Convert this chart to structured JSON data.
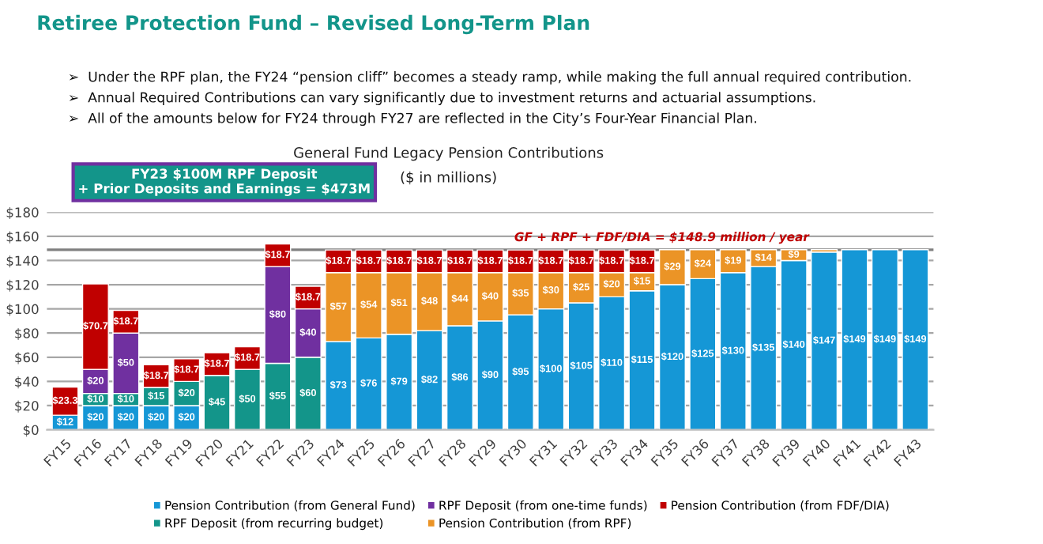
{
  "chart_data": {
    "type": "bar",
    "stacked": true,
    "title": "General Fund Legacy Pension Contributions",
    "subtitle": "($ in millions)",
    "annotations": [
      "Retiree Protection Fund – Revised Long-Term Plan",
      "➢  Under the RPF plan, the FY24 “pension cliff” becomes a steady ramp, while making the full annual required contribution.",
      "➢  Annual Required Contributions can vary significantly due to investment returns and actuarial assumptions.",
      "➢  All of the amounts below for FY24 through FY27 are reflected in the City’s Four-Year Financial Plan.",
      "FY23 $100M RPF Deposit\n+ Prior Deposits and Earnings = $473M"
    ],
    "categories": [
      "FY15",
      "FY16",
      "FY17",
      "FY18",
      "FY19",
      "FY20",
      "FY21",
      "FY22",
      "FY23",
      "FY24",
      "FY25",
      "FY26",
      "FY27",
      "FY28",
      "FY29",
      "FY30",
      "FY31",
      "FY32",
      "FY33",
      "FY34",
      "FY35",
      "FY36",
      "FY37",
      "FY38",
      "FY39",
      "FY40",
      "FY41",
      "FY42",
      "FY43"
    ],
    "series": [
      {
        "name": "Pension Contribution (from General Fund)",
        "color": "#1597d6",
        "values": [
          12,
          20,
          20,
          20,
          20,
          null,
          null,
          null,
          null,
          73,
          76,
          79,
          82,
          86,
          90,
          95,
          100,
          105,
          110,
          115,
          120,
          125,
          130,
          135,
          140,
          147,
          149,
          149,
          149
        ],
        "value_labels": [
          "$12",
          "$20",
          "$20",
          "$20",
          "$20",
          null,
          null,
          null,
          null,
          "$73",
          "$76",
          "$79",
          "$82",
          "$86",
          "$90",
          "$95",
          "$100",
          "$105",
          "$110",
          "$115",
          "$120",
          "$125",
          "$130",
          "$135",
          "$140",
          "$147",
          "$149",
          "$149",
          "$149"
        ]
      },
      {
        "name": "RPF Deposit (from recurring budget)",
        "color": "#13958a",
        "values": [
          null,
          10,
          10,
          15,
          20,
          45,
          50,
          55,
          60,
          null,
          null,
          null,
          null,
          null,
          null,
          null,
          null,
          null,
          null,
          null,
          null,
          null,
          null,
          null,
          null,
          null,
          null,
          null,
          null
        ],
        "value_labels": [
          null,
          "$10",
          "$10",
          "$15",
          "$20",
          "$45",
          "$50",
          "$55",
          "$60",
          null,
          null,
          null,
          null,
          null,
          null,
          null,
          null,
          null,
          null,
          null,
          null,
          null,
          null,
          null,
          null,
          null,
          null,
          null,
          null
        ]
      },
      {
        "name": "RPF Deposit (from one-time funds)",
        "color": "#7030a0",
        "values": [
          null,
          20,
          50,
          null,
          null,
          null,
          null,
          80,
          40,
          null,
          null,
          null,
          null,
          null,
          null,
          null,
          null,
          null,
          null,
          null,
          null,
          null,
          null,
          null,
          null,
          null,
          null,
          null,
          null
        ],
        "value_labels": [
          null,
          "$20",
          "$50",
          null,
          null,
          null,
          null,
          "$80",
          "$40",
          null,
          null,
          null,
          null,
          null,
          null,
          null,
          null,
          null,
          null,
          null,
          null,
          null,
          null,
          null,
          null,
          null,
          null,
          null,
          null
        ]
      },
      {
        "name": "Pension Contribution (from RPF)",
        "color": "#eb9426",
        "values": [
          null,
          null,
          null,
          null,
          null,
          null,
          null,
          null,
          null,
          57,
          54,
          51,
          48,
          44,
          40,
          35,
          30,
          25,
          20,
          15,
          29,
          24,
          19,
          14,
          9,
          2,
          null,
          null,
          null
        ],
        "value_labels": [
          null,
          null,
          null,
          null,
          null,
          null,
          null,
          null,
          null,
          "$57",
          "$54",
          "$51",
          "$48",
          "$44",
          "$40",
          "$35",
          "$30",
          "$25",
          "$20",
          "$15",
          "$29",
          "$24",
          "$19",
          "$14",
          "$9",
          null,
          null,
          null,
          null
        ]
      },
      {
        "name": "Pension Contribution (from FDF/DIA)",
        "color": "#c00000",
        "values": [
          23.3,
          70.7,
          18.7,
          18.7,
          18.7,
          18.7,
          18.7,
          18.7,
          18.7,
          18.7,
          18.7,
          18.7,
          18.7,
          18.7,
          18.7,
          18.7,
          18.7,
          18.7,
          18.7,
          18.7,
          null,
          null,
          null,
          null,
          null,
          null,
          null,
          null,
          null
        ],
        "value_labels": [
          "$23.3",
          "$70.7",
          "$18.7",
          "$18.7",
          "$18.7",
          "$18.7",
          "$18.7",
          "$18.7",
          "$18.7",
          "$18.7",
          "$18.7",
          "$18.7",
          "$18.7",
          "$18.7",
          "$18.7",
          "$18.7",
          "$18.7",
          "$18.7",
          "$18.7",
          "$18.7",
          null,
          null,
          null,
          null,
          null,
          null,
          null,
          null,
          null
        ]
      }
    ],
    "ylim": [
      0,
      180
    ],
    "yticks": [
      {
        "value": 0,
        "label": "$0"
      },
      {
        "value": 20,
        "label": "$20"
      },
      {
        "value": 40,
        "label": "$40"
      },
      {
        "value": 60,
        "label": "$60"
      },
      {
        "value": 80,
        "label": "$80"
      },
      {
        "value": 100,
        "label": "$100"
      },
      {
        "value": 120,
        "label": "$120"
      },
      {
        "value": 140,
        "label": "$140"
      },
      {
        "value": 160,
        "label": "$160"
      },
      {
        "value": 180,
        "label": "$180"
      }
    ],
    "ref_lines": [
      {
        "axis": "y",
        "value": 148.9,
        "label": "GF + RPF + FDF/DIA = $148.9 million / year",
        "color": "#808080"
      }
    ],
    "grid": "y",
    "legend": "bottom"
  }
}
